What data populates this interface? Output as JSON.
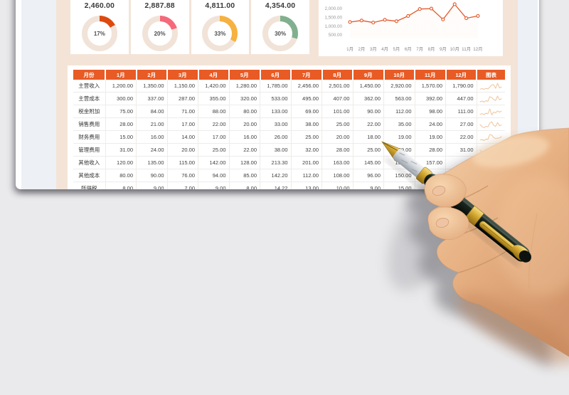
{
  "dashboard": {
    "summary_cards": [
      {
        "value": "2,460.00",
        "percent_label": "17%",
        "percent": 17,
        "color": "#dd4a10"
      },
      {
        "value": "2,887.88",
        "percent_label": "20%",
        "percent": 20,
        "color": "#f4697c"
      },
      {
        "value": "4,811.00",
        "percent_label": "33%",
        "percent": 33,
        "color": "#f6b140"
      },
      {
        "value": "4,354.00",
        "percent_label": "30%",
        "percent": 30,
        "color": "#81b08e"
      }
    ],
    "donut_track_color": "#f1e3d8"
  },
  "chart_data": [
    {
      "type": "pie",
      "variant": "donut",
      "percent": 17,
      "value_label": "2,460.00",
      "color": "#dd4a10"
    },
    {
      "type": "pie",
      "variant": "donut",
      "percent": 20,
      "value_label": "2,887.88",
      "color": "#f4697c"
    },
    {
      "type": "pie",
      "variant": "donut",
      "percent": 33,
      "value_label": "4,811.00",
      "color": "#f6b140"
    },
    {
      "type": "pie",
      "variant": "donut",
      "percent": 30,
      "value_label": "4,354.00",
      "color": "#81b08e"
    },
    {
      "type": "area",
      "x": [
        "1月",
        "2月",
        "3月",
        "4月",
        "5月",
        "6月",
        "7月",
        "8月",
        "9月",
        "10月",
        "11月",
        "12月"
      ],
      "series": [
        {
          "name": "主营收入",
          "values": [
            1200,
            1350,
            1150,
            1420,
            1280,
            1785,
            2456,
            2501,
            1450,
            2920,
            1570,
            1790
          ]
        }
      ],
      "y_tick_labels": [
        "2,000.00",
        "1,500.00",
        "1,000.00",
        "500.00"
      ],
      "ylim": [
        0,
        3000
      ],
      "grid": false,
      "legend": false,
      "line_color": "#e2582a",
      "marker": "circle-open"
    }
  ],
  "table": {
    "header": [
      "月份",
      "1月",
      "2月",
      "3月",
      "4月",
      "5月",
      "6月",
      "7月",
      "8月",
      "9月",
      "10月",
      "11月",
      "12月",
      "图表"
    ],
    "header_bg": "#e85b25",
    "sparkline_color": "#f0c49c",
    "rows": [
      {
        "label": "主营收入",
        "values": [
          "1,200.00",
          "1,350.00",
          "1,150.00",
          "1,420.00",
          "1,280.00",
          "1,785.00",
          "2,456.00",
          "2,501.00",
          "1,450.00",
          "2,920.00",
          "1,570.00",
          "1,790.00"
        ]
      },
      {
        "label": "主营成本",
        "values": [
          "300.00",
          "337.00",
          "287.00",
          "355.00",
          "320.00",
          "533.00",
          "495.00",
          "407.00",
          "362.00",
          "563.00",
          "392.00",
          "447.00"
        ]
      },
      {
        "label": "税金附加",
        "values": [
          "75.00",
          "84.00",
          "71.00",
          "88.00",
          "80.00",
          "133.00",
          "69.00",
          "101.00",
          "90.00",
          "112.00",
          "98.00",
          "111.00"
        ]
      },
      {
        "label": "销售费用",
        "values": [
          "28.00",
          "21.00",
          "17.00",
          "22.00",
          "20.00",
          "33.00",
          "38.00",
          "25.00",
          "22.00",
          "35.00",
          "24.00",
          "27.00"
        ]
      },
      {
        "label": "财务费用",
        "values": [
          "15.00",
          "16.00",
          "14.00",
          "17.00",
          "16.00",
          "26.00",
          "25.00",
          "20.00",
          "18.00",
          "19.00",
          "19.00",
          "22.00"
        ]
      },
      {
        "label": "管理费用",
        "values": [
          "31.00",
          "24.00",
          "20.00",
          "25.00",
          "22.00",
          "38.00",
          "32.00",
          "28.00",
          "25.00",
          "40.00",
          "28.00",
          "31.00"
        ]
      },
      {
        "label": "其他收入",
        "values": [
          "120.00",
          "135.00",
          "115.00",
          "142.00",
          "128.00",
          "213.30",
          "201.00",
          "163.00",
          "145.00",
          "135.00",
          "157.00",
          ""
        ]
      },
      {
        "label": "其他成本",
        "values": [
          "80.00",
          "90.00",
          "76.00",
          "94.00",
          "85.00",
          "142.20",
          "112.00",
          "108.00",
          "96.00",
          "150.00",
          "",
          ""
        ]
      },
      {
        "label": "所得税",
        "values": [
          "8.00",
          "9.00",
          "7.00",
          "9.00",
          "8.00",
          "14.22",
          "13.00",
          "10.00",
          "9.00",
          "15.00",
          "",
          ""
        ]
      }
    ]
  }
}
